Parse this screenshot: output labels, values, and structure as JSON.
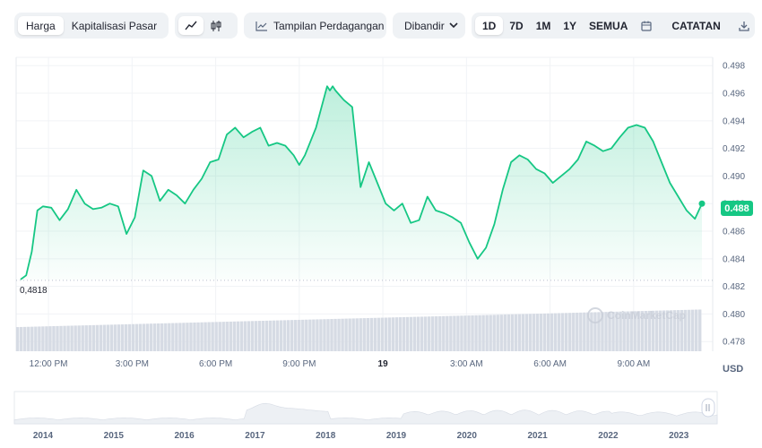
{
  "toolbar": {
    "view_tabs": [
      {
        "label": "Harga",
        "active": true
      },
      {
        "label": "Kapitalisasi Pasar",
        "active": false
      }
    ],
    "chart_style": [
      {
        "icon": "line-chart-icon",
        "active": true
      },
      {
        "icon": "candlestick-icon",
        "active": false
      }
    ],
    "trading_view_label": "Tampilan Perdagangan",
    "compare_label": "Dibandir",
    "ranges": [
      {
        "label": "1D",
        "active": true
      },
      {
        "label": "7D",
        "active": false
      },
      {
        "label": "1M",
        "active": false
      },
      {
        "label": "1Y",
        "active": false
      },
      {
        "label": "SEMUA",
        "active": false
      }
    ],
    "log_label": "CATATAN"
  },
  "currency": "USD",
  "current_price_label": "0.488",
  "min_price_label": "0,4818",
  "watermark_text": "CoinMarketCap",
  "colors": {
    "line": "#16c784",
    "accent_bg": "#eff2f5"
  },
  "chart_data": {
    "type": "area",
    "title": "",
    "xlabel": "",
    "ylabel": "",
    "ylim": [
      0.4773,
      0.4986
    ],
    "y_ticks": [
      0.478,
      0.48,
      0.482,
      0.484,
      0.486,
      0.488,
      0.49,
      0.492,
      0.494,
      0.496,
      0.498
    ],
    "y_tick_labels": [
      "0.478",
      "0.480",
      "0.482",
      "0.484",
      "0.486",
      "0.488",
      "0.490",
      "0.492",
      "0.494",
      "0.496",
      "0.498"
    ],
    "x_range_hours": [
      11.0,
      35.45
    ],
    "x_ticks": [
      {
        "h": 12,
        "label": "12:00 PM",
        "bold": false
      },
      {
        "h": 15,
        "label": "3:00 PM",
        "bold": false
      },
      {
        "h": 18,
        "label": "6:00 PM",
        "bold": false
      },
      {
        "h": 21,
        "label": "9:00 PM",
        "bold": false
      },
      {
        "h": 24,
        "label": "19",
        "bold": true
      },
      {
        "h": 27,
        "label": "3:00 AM",
        "bold": false
      },
      {
        "h": 30,
        "label": "6:00 AM",
        "bold": false
      },
      {
        "h": 33,
        "label": "9:00 AM",
        "bold": false
      }
    ],
    "series": [
      {
        "x": [
          11.0,
          11.2,
          11.4,
          11.6,
          11.8,
          12.1,
          12.4,
          12.7,
          13.0,
          13.3,
          13.6,
          13.9,
          14.2,
          14.5,
          14.8,
          15.1,
          15.4,
          15.7,
          16.0,
          16.3,
          16.6,
          16.9,
          17.2,
          17.5,
          17.8,
          18.1,
          18.4,
          18.7,
          19.0,
          19.3,
          19.6,
          19.9,
          20.2,
          20.5,
          20.8,
          21.0,
          21.2,
          21.4,
          21.6,
          21.8,
          22.0,
          22.1,
          22.2,
          22.3,
          22.6,
          22.9,
          23.2,
          23.5,
          23.8,
          24.1,
          24.4,
          24.7,
          25.0,
          25.3,
          25.6,
          25.9,
          26.2,
          26.5,
          26.8,
          27.1,
          27.4,
          27.7,
          28.0,
          28.3,
          28.6,
          28.9,
          29.2,
          29.5,
          29.8,
          30.1,
          30.4,
          30.7,
          31.0,
          31.3,
          31.6,
          31.9,
          32.2,
          32.5,
          32.8,
          33.1,
          33.4,
          33.7,
          34.0,
          34.3,
          34.6,
          34.9,
          35.2,
          35.45
        ],
        "values": [
          0.4825,
          0.4828,
          0.4845,
          0.4875,
          0.4878,
          0.4877,
          0.4868,
          0.4876,
          0.489,
          0.488,
          0.4876,
          0.4877,
          0.488,
          0.4878,
          0.4858,
          0.487,
          0.4904,
          0.49,
          0.4882,
          0.489,
          0.4886,
          0.488,
          0.489,
          0.4898,
          0.491,
          0.4912,
          0.493,
          0.4935,
          0.4928,
          0.4932,
          0.4935,
          0.4922,
          0.4924,
          0.4922,
          0.4915,
          0.4908,
          0.4915,
          0.4925,
          0.4935,
          0.495,
          0.4965,
          0.4962,
          0.4965,
          0.4962,
          0.4955,
          0.495,
          0.4892,
          0.491,
          0.4895,
          0.488,
          0.4875,
          0.488,
          0.4866,
          0.4868,
          0.4885,
          0.4875,
          0.4873,
          0.487,
          0.4866,
          0.4852,
          0.484,
          0.4848,
          0.4865,
          0.489,
          0.491,
          0.4915,
          0.4912,
          0.4905,
          0.4902,
          0.4895,
          0.49,
          0.4905,
          0.4912,
          0.4925,
          0.4922,
          0.4918,
          0.492,
          0.4928,
          0.4935,
          0.4937,
          0.4935,
          0.4925,
          0.491,
          0.4895,
          0.4885,
          0.4875,
          0.4869,
          0.488
        ]
      }
    ],
    "volume": {
      "note": "relative volume bars beneath the price line",
      "start": 0.55,
      "end": 0.95
    },
    "navigator_years": [
      "2014",
      "2015",
      "2016",
      "2017",
      "2018",
      "2019",
      "2020",
      "2021",
      "2022",
      "2023"
    ]
  }
}
